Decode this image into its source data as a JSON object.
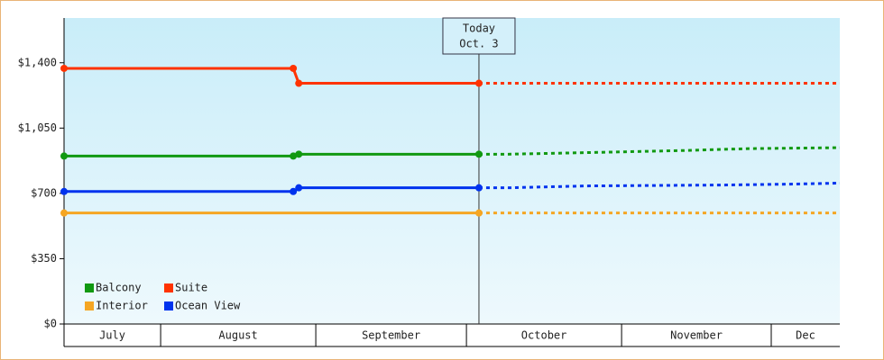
{
  "chart_data": {
    "type": "line",
    "xlim": [
      0,
      155
    ],
    "ylim": [
      0,
      1640
    ],
    "yticks": [
      {
        "value": 0,
        "label": "$0"
      },
      {
        "value": 350,
        "label": "$350"
      },
      {
        "value": 700,
        "label": "$700"
      },
      {
        "value": 1050,
        "label": "$1,050"
      },
      {
        "value": 1400,
        "label": "$1,400"
      }
    ],
    "x_bands": [
      {
        "label": "July",
        "start": 0,
        "end": 19.3
      },
      {
        "label": "August",
        "start": 19.3,
        "end": 50.3
      },
      {
        "label": "September",
        "start": 50.3,
        "end": 80.4
      },
      {
        "label": "October",
        "start": 80.4,
        "end": 111.4
      },
      {
        "label": "November",
        "start": 111.4,
        "end": 141.3
      },
      {
        "label": "Dec",
        "start": 141.3,
        "end": 155
      }
    ],
    "annotation": {
      "lines": [
        "Today",
        "Oct. 3"
      ],
      "x": 82.9
    },
    "legend": "lower left",
    "series": [
      {
        "name": "Balcony",
        "color": "#119911",
        "x": [
          0,
          45.8,
          46.9,
          82.9
        ],
        "values": [
          900,
          900,
          910,
          910
        ],
        "forecast_x": [
          82.9,
          88.7,
          107,
          124.1,
          136.8,
          155
        ],
        "forecast_values": [
          910,
          910,
          920,
          930,
          940,
          945
        ]
      },
      {
        "name": "Suite",
        "color": "#ff3300",
        "x": [
          0,
          45.8,
          46.9,
          82.9
        ],
        "values": [
          1370,
          1370,
          1290,
          1290
        ],
        "forecast_x": [
          82.9,
          155
        ],
        "forecast_values": [
          1290,
          1290
        ]
      },
      {
        "name": "Interior",
        "color": "#f5a623",
        "x": [
          0,
          82.9
        ],
        "values": [
          595,
          595
        ],
        "forecast_x": [
          82.9,
          155
        ],
        "forecast_values": [
          595,
          595
        ]
      },
      {
        "name": "Ocean View",
        "color": "#0033ee",
        "x": [
          0,
          45.8,
          46.9,
          82.9
        ],
        "values": [
          710,
          710,
          730,
          730
        ],
        "forecast_x": [
          82.9,
          88.7,
          104.4,
          132.3,
          145.8,
          155
        ],
        "forecast_values": [
          730,
          730,
          740,
          745,
          750,
          755
        ]
      }
    ]
  }
}
